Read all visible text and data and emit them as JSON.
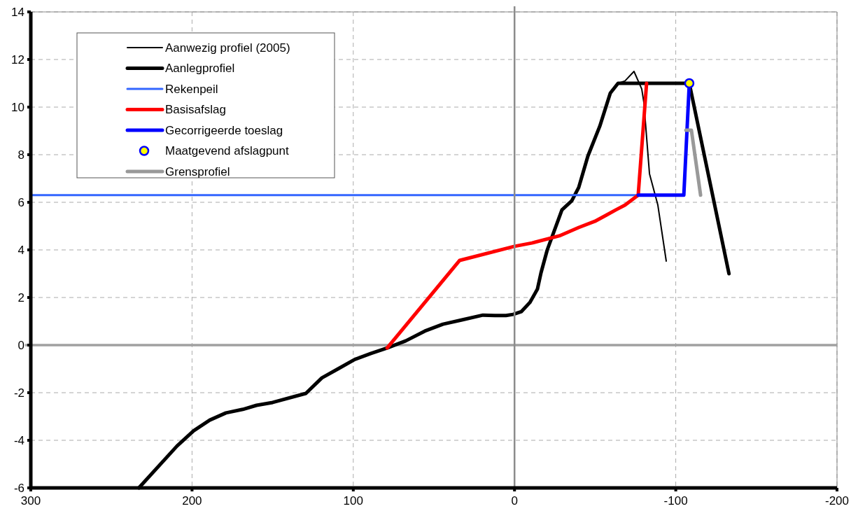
{
  "chart_data": {
    "type": "line",
    "xlim": [
      300,
      -200
    ],
    "xticks": [
      300,
      200,
      100,
      0,
      -100,
      -200
    ],
    "ylim": [
      -6,
      14
    ],
    "yticks": [
      -6,
      -4,
      -2,
      0,
      2,
      4,
      6,
      8,
      10,
      12,
      14
    ],
    "grid": true,
    "legend": "top left",
    "line_style": "solid",
    "ref_lines": [
      {
        "axis": "x",
        "value": 0,
        "color": "#8c8c8c"
      },
      {
        "axis": "y",
        "value": 0,
        "color": "#a0a0a0"
      }
    ],
    "series": [
      {
        "name": "Aanwezig profiel (2005)",
        "color": "#000000",
        "x": [
          -59.4,
          -64.2,
          -68.5,
          -74.1,
          -78.9,
          -80.2,
          -83.7,
          -88.9,
          -94.1
        ],
        "values": [
          10.59,
          11.0,
          11.1,
          11.5,
          10.76,
          10.2,
          7.2,
          5.88,
          3.53
        ]
      },
      {
        "name": "Aanlegprofiel",
        "color": "#000000",
        "x": [
          233,
          209.3,
          199,
          189,
          179,
          168.5,
          160,
          150,
          129.4,
          119.5,
          109.5,
          99,
          89,
          79,
          67.4,
          55.6,
          44.4,
          32.6,
          19.6,
          12.2,
          5.3,
          0.9,
          -4.3,
          -9.5,
          -14.2,
          -16.4,
          -20.3,
          -29.4,
          -35.5,
          -39.8,
          -45.5,
          -52.9,
          -59.4,
          -64.2,
          -108.4,
          -133
        ],
        "values": [
          -6,
          -4.24,
          -3.6,
          -3.15,
          -2.85,
          -2.7,
          -2.53,
          -2.41,
          -2.03,
          -1.38,
          -1.0,
          -0.6,
          -0.35,
          -0.12,
          0.18,
          0.59,
          0.88,
          1.06,
          1.26,
          1.24,
          1.24,
          1.29,
          1.41,
          1.79,
          2.35,
          3.03,
          4.0,
          5.68,
          6.06,
          6.62,
          7.94,
          9.2,
          10.59,
          11.0,
          11.0,
          3.0
        ]
      },
      {
        "name": "Rekenpeil",
        "color": "#3366ff",
        "x": [
          300,
          -76.7
        ],
        "values": [
          6.3,
          6.3
        ]
      },
      {
        "name": "Basisafslag",
        "color": "#ff0000",
        "x": [
          79,
          34,
          0,
          -10.8,
          -27.8,
          -39.8,
          -49.8,
          -57.2,
          -62.8,
          -68.5,
          -76.7,
          -81.9
        ],
        "values": [
          -0.12,
          3.56,
          4.15,
          4.29,
          4.59,
          4.94,
          5.2,
          5.47,
          5.68,
          5.88,
          6.3,
          11.0
        ]
      },
      {
        "name": "Gecorrigeerde toeslag",
        "color": "#0000ff",
        "x": [
          -76.7,
          -105,
          -108.4
        ],
        "values": [
          6.3,
          6.3,
          11.0
        ]
      },
      {
        "name": "Maatgevend afslagpunt",
        "type": "scatter",
        "marker": "circle",
        "color": "#ffff00",
        "x": [
          -108.4
        ],
        "values": [
          11.0
        ]
      },
      {
        "name": "Grensprofiel",
        "color": "#999999",
        "x": [
          -106.3,
          -109.7,
          -115.4
        ],
        "values": [
          9.03,
          9.03,
          6.3
        ]
      }
    ]
  }
}
